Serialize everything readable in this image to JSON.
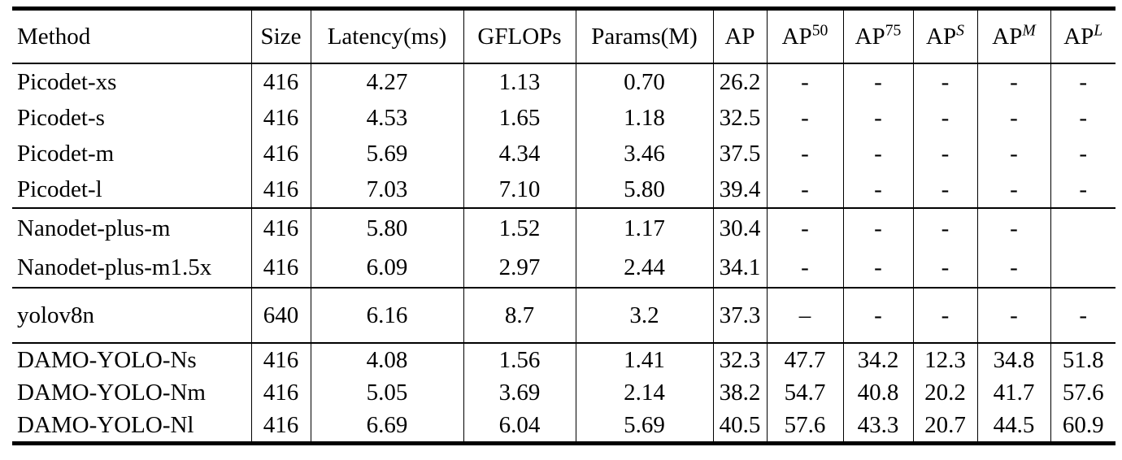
{
  "chart_data": {
    "type": "table",
    "columns": [
      {
        "label": "Method",
        "align": "left"
      },
      {
        "label": "Size"
      },
      {
        "label": "Latency(ms)"
      },
      {
        "label": "GFLOPs"
      },
      {
        "label": "Params(M)"
      },
      {
        "label": "AP"
      },
      {
        "label": "AP50",
        "base": "AP",
        "sup": "50",
        "sup_style": "upright"
      },
      {
        "label": "AP75",
        "base": "AP",
        "sup": "75",
        "sup_style": "upright"
      },
      {
        "label": "APS",
        "base": "AP",
        "sup": "S",
        "sup_style": "italic"
      },
      {
        "label": "APM",
        "base": "AP",
        "sup": "M",
        "sup_style": "italic"
      },
      {
        "label": "APL",
        "base": "AP",
        "sup": "L",
        "sup_style": "italic"
      }
    ],
    "groups": [
      {
        "rows": [
          [
            "Picodet-xs",
            "416",
            "4.27",
            "1.13",
            "0.70",
            "26.2",
            "-",
            "-",
            "-",
            "-",
            "-"
          ],
          [
            "Picodet-s",
            "416",
            "4.53",
            "1.65",
            "1.18",
            "32.5",
            "-",
            "-",
            "-",
            "-",
            "-"
          ],
          [
            "Picodet-m",
            "416",
            "5.69",
            "4.34",
            "3.46",
            "37.5",
            "-",
            "-",
            "-",
            "-",
            "-"
          ],
          [
            "Picodet-l",
            "416",
            "7.03",
            "7.10",
            "5.80",
            "39.4",
            "-",
            "-",
            "-",
            "-",
            "-"
          ]
        ]
      },
      {
        "rows": [
          [
            "Nanodet-plus-m",
            "416",
            "5.80",
            "1.52",
            "1.17",
            "30.4",
            "-",
            "-",
            "-",
            "-",
            ""
          ],
          [
            "Nanodet-plus-m1.5x",
            "416",
            "6.09",
            "2.97",
            "2.44",
            "34.1",
            "-",
            "-",
            "-",
            "-",
            ""
          ]
        ]
      },
      {
        "rows": [
          [
            "yolov8n",
            "640",
            "6.16",
            "8.7",
            "3.2",
            "37.3",
            "–",
            "-",
            "-",
            "-",
            "-"
          ]
        ]
      },
      {
        "rows": [
          [
            "DAMO-YOLO-Ns",
            "416",
            "4.08",
            "1.56",
            "1.41",
            "32.3",
            "47.7",
            "34.2",
            "12.3",
            "34.8",
            "51.8"
          ],
          [
            "DAMO-YOLO-Nm",
            "416",
            "5.05",
            "3.69",
            "2.14",
            "38.2",
            "54.7",
            "40.8",
            "20.2",
            "41.7",
            "57.6"
          ],
          [
            "DAMO-YOLO-Nl",
            "416",
            "6.69",
            "6.04",
            "5.69",
            "40.5",
            "57.6",
            "43.3",
            "20.7",
            "44.5",
            "60.9"
          ]
        ]
      }
    ],
    "colors": {
      "text": "#000000",
      "rule": "#000000",
      "background": "#ffffff"
    }
  }
}
